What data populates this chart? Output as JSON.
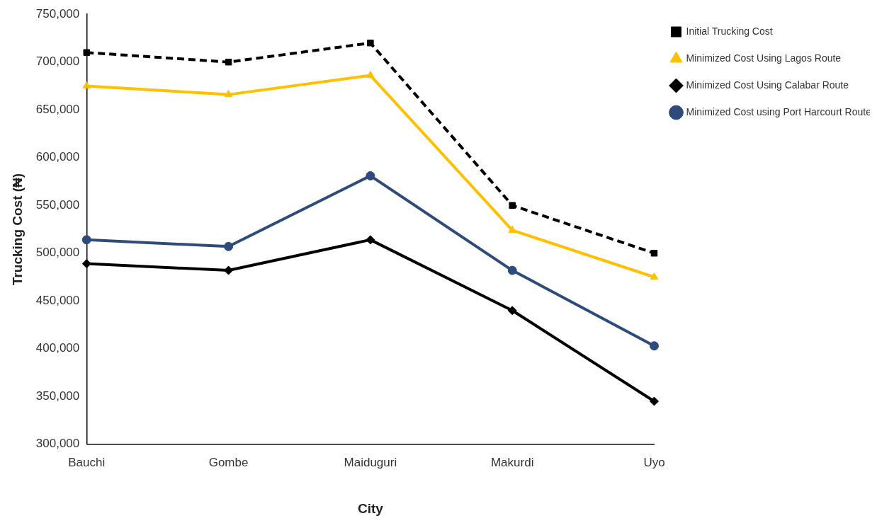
{
  "chart_data": {
    "type": "line",
    "xlabel": "City",
    "ylabel": "Trucking Cost (₦)",
    "categories": [
      "Bauchi",
      "Gombe",
      "Maiduguri",
      "Makurdi",
      "Uyo"
    ],
    "series": [
      {
        "name": "Initial Trucking Cost",
        "color": "#000000",
        "line_style": "dashed",
        "marker": "square",
        "values": [
          710000,
          700000,
          720000,
          550000,
          500000
        ]
      },
      {
        "name": "Minimized Cost Using Lagos Route",
        "color": "#ffc000",
        "marker": "triangle",
        "values": [
          675000,
          666000,
          686000,
          524000,
          475000
        ]
      },
      {
        "name": "Minimized Cost Using Calabar Route",
        "color": "#000000",
        "marker": "diamond",
        "values": [
          489000,
          482000,
          514000,
          440000,
          345000
        ]
      },
      {
        "name": "Minimized Cost using Port Harcourt Route",
        "color": "#2f4b7c",
        "marker": "circle",
        "values": [
          514000,
          507000,
          581000,
          482000,
          403000
        ]
      }
    ],
    "ylim": [
      300000,
      750000
    ],
    "yticks": [
      {
        "value": 300000,
        "label": "300,000"
      },
      {
        "value": 350000,
        "label": "350,000"
      },
      {
        "value": 400000,
        "label": "400,000"
      },
      {
        "value": 450000,
        "label": "450,000"
      },
      {
        "value": 500000,
        "label": "500,000"
      },
      {
        "value": 550000,
        "label": "550,000"
      },
      {
        "value": 600000,
        "label": "600,000"
      },
      {
        "value": 650000,
        "label": "650,000"
      },
      {
        "value": 700000,
        "label": "700,000"
      },
      {
        "value": 750000,
        "label": "750,000"
      }
    ],
    "grid": false,
    "legend": "right"
  }
}
